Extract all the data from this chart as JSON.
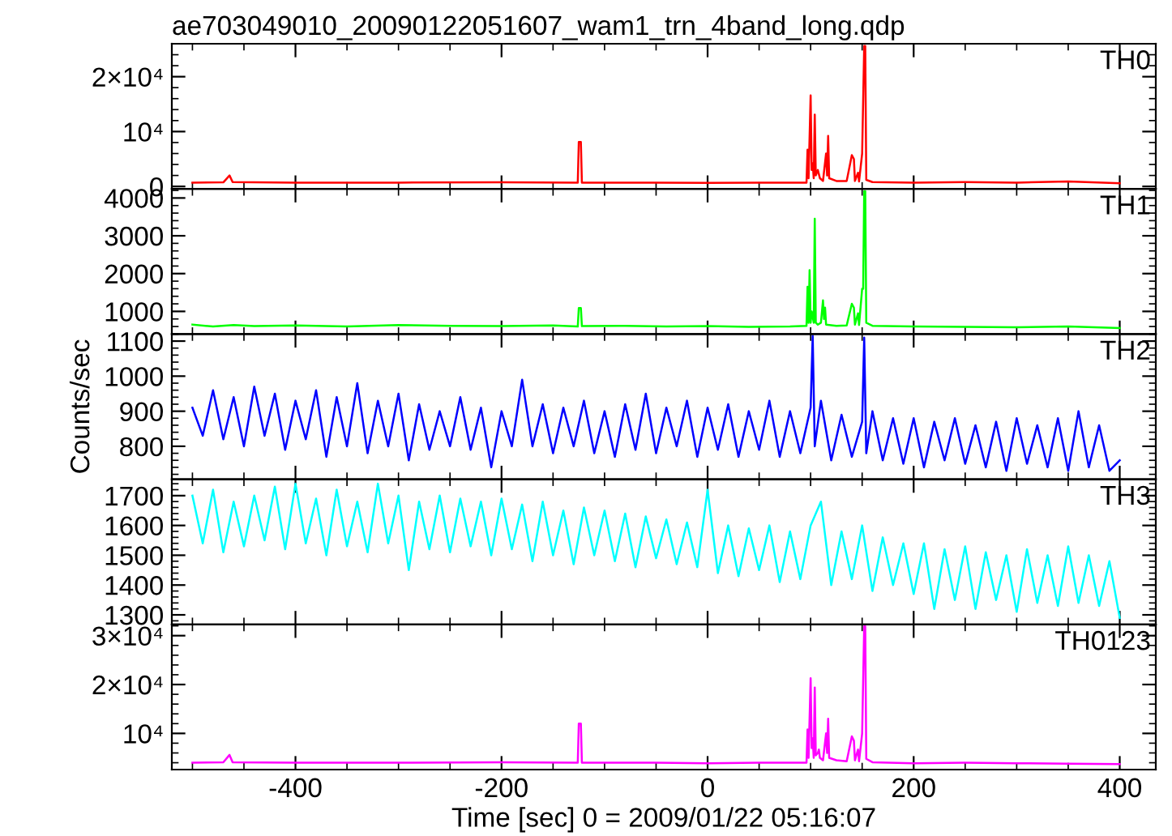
{
  "chart_data": [
    {
      "type": "line",
      "title": "ae703049010_20090122051607_wam1_trn_4band_long.qdp",
      "tick_labels": "y",
      "xlim": [
        -520,
        435
      ],
      "xticks": [
        -400,
        -200,
        0,
        200,
        400
      ],
      "ylim": [
        -450,
        26000
      ],
      "yticks": [
        0,
        {
          "value": 10000,
          "label": "10⁴"
        },
        {
          "value": 20000,
          "label": "2×10⁴"
        }
      ],
      "x": [
        -500,
        -470,
        -464,
        -461,
        -400,
        -300,
        -200,
        -126,
        -125,
        -123,
        -122,
        -50,
        0,
        50,
        96,
        97,
        98,
        100,
        101,
        102,
        103,
        104,
        105,
        107,
        109,
        112,
        115,
        116,
        117,
        118,
        125,
        135,
        140,
        142,
        143,
        146,
        147,
        150,
        152,
        153,
        154,
        160,
        200,
        250,
        300,
        350,
        400
      ],
      "series": [
        {
          "name": "TH0",
          "color": "#ff0000",
          "values": [
            700,
            750,
            2000,
            800,
            700,
            700,
            750,
            700,
            8100,
            8100,
            700,
            700,
            650,
            700,
            700,
            6700,
            1500,
            16600,
            3000,
            4200,
            1500,
            13100,
            2000,
            3000,
            1500,
            1000,
            6000,
            2000,
            9200,
            1500,
            1000,
            1000,
            5700,
            5000,
            1000,
            2500,
            900,
            6000,
            25600,
            25600,
            1200,
            800,
            700,
            800,
            700,
            900,
            600
          ]
        }
      ]
    },
    {
      "type": "line",
      "tick_labels": "y",
      "xlim": [
        -520,
        435
      ],
      "xticks": [
        -400,
        -200,
        0,
        200,
        400
      ],
      "ylim": [
        400,
        4240
      ],
      "yticks": [
        1000,
        2000,
        3000,
        4000
      ],
      "x": [
        -500,
        -480,
        -460,
        -440,
        -400,
        -350,
        -300,
        -250,
        -200,
        -150,
        -126,
        -125,
        -123,
        -122,
        -80,
        -40,
        0,
        40,
        80,
        96,
        97,
        98,
        99,
        100,
        101,
        103,
        104,
        105,
        107,
        110,
        112,
        113,
        114,
        115,
        125,
        135,
        140,
        142,
        143,
        146,
        147,
        150,
        151,
        152,
        153,
        154,
        160,
        200,
        250,
        300,
        350,
        400
      ],
      "series": [
        {
          "name": "TH1",
          "color": "#00ff00",
          "values": [
            650,
            600,
            640,
            610,
            630,
            600,
            640,
            620,
            610,
            630,
            600,
            1090,
            1090,
            610,
            620,
            600,
            610,
            590,
            600,
            620,
            1650,
            700,
            2090,
            700,
            1000,
            700,
            3450,
            700,
            650,
            700,
            1290,
            800,
            1100,
            650,
            620,
            630,
            1200,
            1100,
            650,
            950,
            640,
            1600,
            1600,
            4180,
            4180,
            700,
            620,
            600,
            590,
            580,
            600,
            560
          ]
        }
      ]
    },
    {
      "type": "line",
      "tick_labels": "y",
      "ylabel": "Counts/sec",
      "xlim": [
        -520,
        435
      ],
      "xticks": [
        -400,
        -200,
        0,
        200,
        400
      ],
      "ylim": [
        706,
        1120
      ],
      "yticks": [
        800,
        900,
        1000,
        1100
      ],
      "x": [
        -500,
        -490,
        -480,
        -470,
        -460,
        -450,
        -440,
        -430,
        -420,
        -410,
        -400,
        -390,
        -380,
        -370,
        -360,
        -350,
        -340,
        -330,
        -320,
        -310,
        -300,
        -290,
        -280,
        -270,
        -260,
        -250,
        -240,
        -230,
        -220,
        -210,
        -200,
        -190,
        -180,
        -170,
        -160,
        -150,
        -140,
        -130,
        -120,
        -110,
        -100,
        -90,
        -80,
        -70,
        -60,
        -50,
        -40,
        -30,
        -20,
        -10,
        0,
        10,
        20,
        30,
        40,
        50,
        60,
        70,
        80,
        90,
        100,
        102,
        104,
        110,
        120,
        130,
        140,
        150,
        152,
        154,
        160,
        170,
        180,
        190,
        200,
        210,
        220,
        230,
        240,
        250,
        260,
        270,
        280,
        290,
        300,
        310,
        320,
        330,
        340,
        350,
        360,
        370,
        380,
        390,
        400
      ],
      "series": [
        {
          "name": "TH2",
          "color": "#0000ff",
          "values": [
            910,
            830,
            960,
            820,
            940,
            800,
            970,
            830,
            950,
            790,
            930,
            820,
            960,
            770,
            940,
            800,
            980,
            780,
            930,
            800,
            950,
            760,
            920,
            790,
            900,
            800,
            940,
            790,
            910,
            740,
            900,
            800,
            990,
            800,
            920,
            780,
            910,
            800,
            930,
            780,
            900,
            770,
            920,
            790,
            950,
            780,
            910,
            800,
            930,
            770,
            910,
            790,
            920,
            770,
            900,
            790,
            930,
            770,
            900,
            780,
            910,
            1115,
            800,
            930,
            760,
            890,
            770,
            870,
            1110,
            780,
            900,
            760,
            880,
            750,
            880,
            740,
            870,
            760,
            880,
            750,
            860,
            740,
            870,
            730,
            880,
            750,
            860,
            740,
            880,
            730,
            900,
            740,
            860,
            730,
            760
          ]
        }
      ]
    },
    {
      "type": "line",
      "tick_labels": "y",
      "xlim": [
        -520,
        435
      ],
      "xticks": [
        -400,
        -200,
        0,
        200,
        400
      ],
      "ylim": [
        1268,
        1755
      ],
      "yticks": [
        1300,
        1400,
        1500,
        1600,
        1700
      ],
      "x": [
        -500,
        -490,
        -480,
        -470,
        -460,
        -450,
        -440,
        -430,
        -420,
        -410,
        -400,
        -390,
        -380,
        -370,
        -360,
        -350,
        -340,
        -330,
        -320,
        -310,
        -300,
        -290,
        -280,
        -270,
        -260,
        -250,
        -240,
        -230,
        -220,
        -210,
        -200,
        -190,
        -180,
        -170,
        -160,
        -150,
        -140,
        -130,
        -120,
        -110,
        -100,
        -90,
        -80,
        -70,
        -60,
        -50,
        -40,
        -30,
        -20,
        -10,
        0,
        10,
        20,
        30,
        40,
        50,
        60,
        70,
        80,
        90,
        100,
        110,
        120,
        130,
        140,
        150,
        160,
        170,
        180,
        190,
        200,
        210,
        220,
        230,
        240,
        250,
        260,
        270,
        280,
        290,
        300,
        310,
        320,
        330,
        340,
        350,
        360,
        370,
        380,
        390,
        400
      ],
      "series": [
        {
          "name": "TH3",
          "color": "#00ffff",
          "values": [
            1700,
            1540,
            1720,
            1510,
            1680,
            1530,
            1700,
            1550,
            1730,
            1520,
            1740,
            1540,
            1690,
            1500,
            1720,
            1530,
            1680,
            1510,
            1740,
            1540,
            1700,
            1450,
            1680,
            1520,
            1700,
            1510,
            1690,
            1530,
            1680,
            1500,
            1690,
            1520,
            1670,
            1480,
            1680,
            1500,
            1650,
            1470,
            1660,
            1500,
            1650,
            1480,
            1640,
            1460,
            1630,
            1490,
            1620,
            1470,
            1610,
            1460,
            1720,
            1440,
            1600,
            1430,
            1590,
            1450,
            1600,
            1410,
            1580,
            1420,
            1600,
            1680,
            1400,
            1580,
            1420,
            1600,
            1380,
            1560,
            1400,
            1540,
            1370,
            1540,
            1320,
            1520,
            1350,
            1530,
            1320,
            1510,
            1350,
            1500,
            1310,
            1520,
            1340,
            1500,
            1330,
            1530,
            1340,
            1500,
            1330,
            1480,
            1290
          ]
        }
      ]
    },
    {
      "type": "line",
      "xlabel": "Time [sec] 0 = 2009/01/22 05:16:07",
      "xlim": [
        -520,
        435
      ],
      "xticks": [
        -400,
        -200,
        0,
        200,
        400
      ],
      "ylim": [
        2600,
        32300
      ],
      "yticks": [
        {
          "value": 10000,
          "label": "10⁴"
        },
        {
          "value": 20000,
          "label": "2×10⁴"
        },
        {
          "value": 30000,
          "label": "3×10⁴"
        }
      ],
      "x": [
        -500,
        -470,
        -464,
        -461,
        -400,
        -300,
        -200,
        -126,
        -125,
        -123,
        -122,
        -50,
        0,
        50,
        96,
        97,
        98,
        100,
        101,
        102,
        103,
        104,
        105,
        107,
        108,
        109,
        112,
        115,
        116,
        117,
        118,
        125,
        135,
        140,
        142,
        143,
        146,
        147,
        150,
        152,
        153,
        154,
        160,
        200,
        250,
        300,
        350,
        400
      ],
      "series": [
        {
          "name": "TH0123",
          "color": "#ff00ff",
          "values": [
            4000,
            4100,
            5600,
            4100,
            4000,
            4000,
            4100,
            4000,
            12000,
            12000,
            4000,
            4000,
            3900,
            4000,
            4000,
            10800,
            5000,
            21300,
            7000,
            9000,
            5000,
            19400,
            5500,
            6000,
            6700,
            5000,
            4500,
            10000,
            6000,
            13000,
            5000,
            4500,
            4300,
            9400,
            8500,
            4500,
            6700,
            4300,
            10000,
            31900,
            31900,
            4800,
            4100,
            3900,
            4000,
            3900,
            3800,
            3700
          ]
        }
      ]
    }
  ]
}
